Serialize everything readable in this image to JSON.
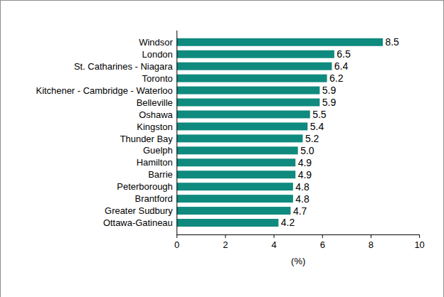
{
  "chart_data": {
    "type": "bar",
    "orientation": "horizontal",
    "categories": [
      "Windsor",
      "London",
      "St. Catharines - Niagara",
      "Toronto",
      "Kitchener - Cambridge - Waterloo",
      "Belleville",
      "Oshawa",
      "Kingston",
      "Thunder Bay",
      "Guelph",
      "Hamilton",
      "Barrie",
      "Peterborough",
      "Brantford",
      "Greater Sudbury",
      "Ottawa-Gatineau"
    ],
    "values": [
      8.5,
      6.5,
      6.4,
      6.2,
      5.9,
      5.9,
      5.5,
      5.4,
      5.2,
      5.0,
      4.9,
      4.9,
      4.8,
      4.8,
      4.7,
      4.2
    ],
    "value_labels": [
      "8.5",
      "6.5",
      "6.4",
      "6.2",
      "5.9",
      "5.9",
      "5.5",
      "5.4",
      "5.2",
      "5.0",
      "4.9",
      "4.9",
      "4.8",
      "4.8",
      "4.7",
      "4.2"
    ],
    "color": "#0f8a7e",
    "x_label": "(%)",
    "xlim": [
      0,
      10
    ],
    "xticks": [
      0,
      2,
      4,
      6,
      8,
      10
    ],
    "grid": false,
    "data_labels": true
  }
}
